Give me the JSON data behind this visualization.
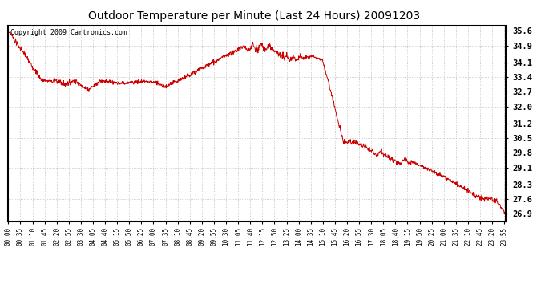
{
  "title": "Outdoor Temperature per Minute (Last 24 Hours) 20091203",
  "copyright_text": "Copyright 2009 Cartronics.com",
  "line_color": "#cc0000",
  "bg_color": "#ffffff",
  "grid_color": "#bbbbbb",
  "yticks": [
    26.9,
    27.6,
    28.3,
    29.1,
    29.8,
    30.5,
    31.2,
    32.0,
    32.7,
    33.4,
    34.1,
    34.9,
    35.6
  ],
  "ylim": [
    26.55,
    35.85
  ],
  "x_labels": [
    "00:00",
    "00:35",
    "01:10",
    "01:45",
    "02:20",
    "02:55",
    "03:30",
    "04:05",
    "04:40",
    "05:15",
    "05:50",
    "06:25",
    "07:00",
    "07:35",
    "08:10",
    "08:45",
    "09:20",
    "09:55",
    "10:30",
    "11:05",
    "11:40",
    "12:15",
    "12:50",
    "13:25",
    "14:00",
    "14:35",
    "15:10",
    "15:45",
    "16:20",
    "16:55",
    "17:30",
    "18:05",
    "18:40",
    "19:15",
    "19:50",
    "20:25",
    "21:00",
    "21:35",
    "22:10",
    "22:45",
    "23:20",
    "23:55"
  ],
  "x_tick_positions": [
    0,
    35,
    70,
    105,
    140,
    175,
    210,
    245,
    280,
    315,
    350,
    385,
    420,
    455,
    490,
    525,
    560,
    595,
    630,
    665,
    700,
    735,
    770,
    805,
    840,
    875,
    910,
    945,
    980,
    1015,
    1050,
    1085,
    1120,
    1155,
    1190,
    1225,
    1260,
    1295,
    1330,
    1365,
    1400,
    1435
  ]
}
